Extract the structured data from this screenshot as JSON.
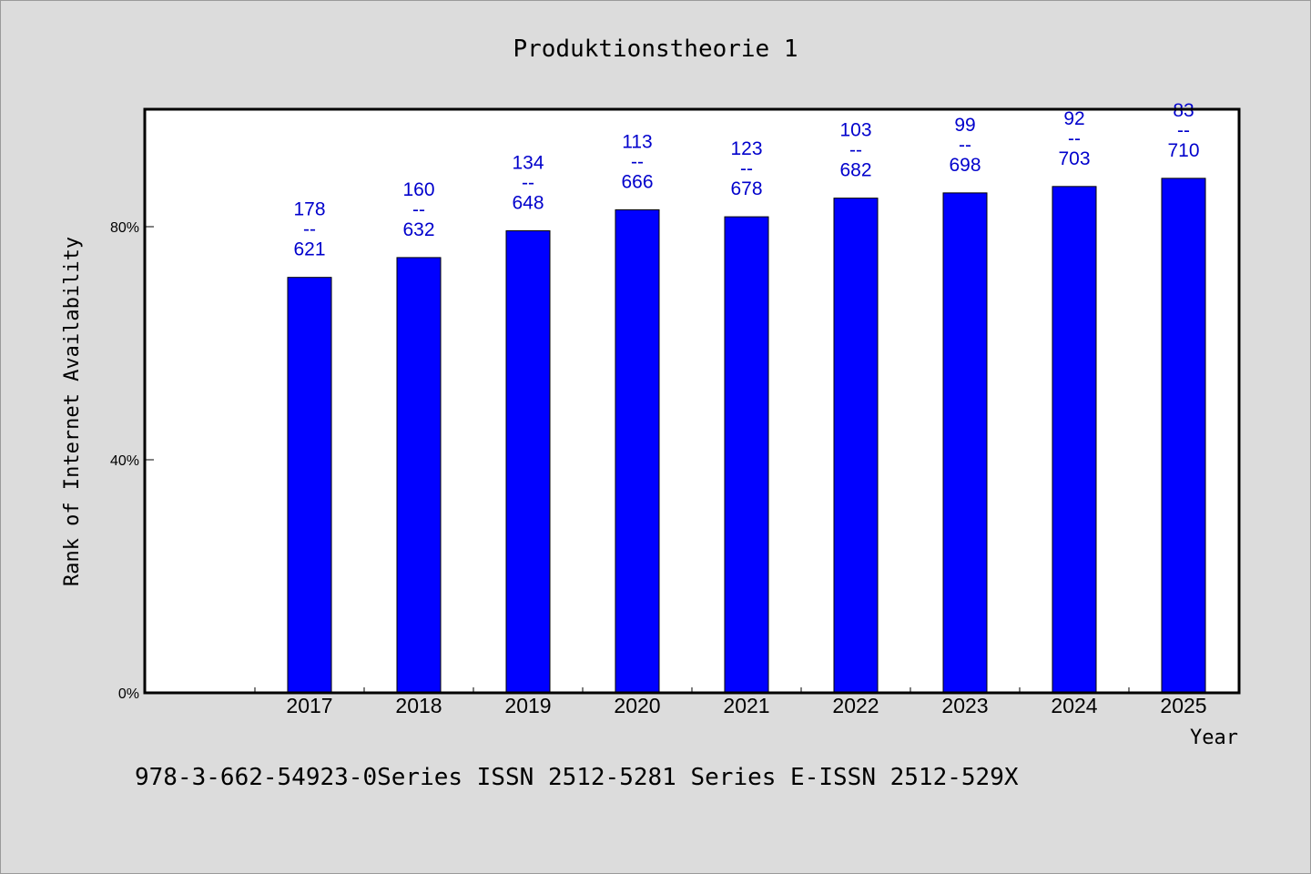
{
  "chart_data": {
    "type": "bar",
    "title": "Produktionstheorie 1",
    "xlabel": "Year",
    "ylabel": "Rank of Internet Availability",
    "categories": [
      "2017",
      "2018",
      "2019",
      "2020",
      "2021",
      "2022",
      "2023",
      "2024",
      "2025"
    ],
    "values": [
      71.3,
      74.7,
      79.3,
      82.9,
      81.7,
      84.9,
      85.8,
      86.9,
      88.3
    ],
    "bar_labels": [
      {
        "top": "178",
        "sep": "--",
        "bottom": "621"
      },
      {
        "top": "160",
        "sep": "--",
        "bottom": "632"
      },
      {
        "top": "134",
        "sep": "--",
        "bottom": "648"
      },
      {
        "top": "113",
        "sep": "--",
        "bottom": "666"
      },
      {
        "top": "123",
        "sep": "--",
        "bottom": "678"
      },
      {
        "top": "103",
        "sep": "--",
        "bottom": "682"
      },
      {
        "top": "99",
        "sep": "--",
        "bottom": "698"
      },
      {
        "top": "92",
        "sep": "--",
        "bottom": "703"
      },
      {
        "top": "83",
        "sep": "--",
        "bottom": "710"
      }
    ],
    "ylim": [
      0,
      100
    ],
    "yticks": [
      {
        "value": 0,
        "label": "0%"
      },
      {
        "value": 40,
        "label": "40%"
      },
      {
        "value": 80,
        "label": "80%"
      }
    ],
    "grid": false,
    "legend": "none",
    "colors": {
      "bar": "#0000ff",
      "bar_label": "#0000cc",
      "background": "#dcdcdc",
      "plot_background": "#ffffff"
    }
  },
  "footer": {
    "text": "978-3-662-54923-0Series ISSN 2512-5281 Series E-ISSN 2512-529X"
  }
}
